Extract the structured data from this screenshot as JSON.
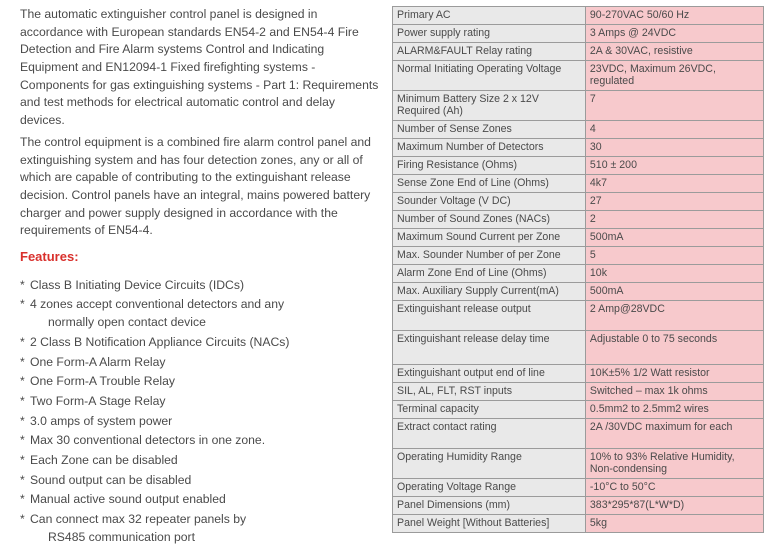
{
  "description": {
    "para1": "The automatic extinguisher control panel is designed in accordance with European standards EN54-2 and  EN54-4 Fire Detection and Fire Alarm systems  Control and Indicating Equipment and EN12094-1  Fixed firefighting systems - Components for gas extinguishing systems - Part 1: Requirements and test methods for electrical automatic control and delay devices.",
    "para2": "The control equipment is a combined fire alarm control panel and extinguishing system and has four detection zones, any or all of which are capable of contributing to the extinguishant release decision. Control panels have an integral, mains powered battery charger and power supply designed in accordance with the requirements of EN54-4."
  },
  "features_header": "Features:",
  "features": [
    {
      "text": " Class B Initiating Device Circuits (IDCs)"
    },
    {
      "text": " 4 zones accept conventional detectors and any",
      "sub": "normally open contact device"
    },
    {
      "text": " 2 Class B Notification Appliance Circuits (NACs)"
    },
    {
      "text": " One Form-A Alarm Relay"
    },
    {
      "text": " One Form-A Trouble Relay"
    },
    {
      "text": " Two Form-A Stage Relay"
    },
    {
      "text": " 3.0 amps of system power"
    },
    {
      "text": " Max 30 conventional detectors in one zone."
    },
    {
      "text": " Each Zone can be disabled"
    },
    {
      "text": " Sound output can be disabled"
    },
    {
      "text": " Manual active sound output enabled"
    },
    {
      "text": " Can connect max 32 repeater panels by",
      "sub": "RS485 communication port"
    }
  ],
  "specs": [
    {
      "k": "Primary AC",
      "v": "90-270VAC 50/60 Hz"
    },
    {
      "k": "Power supply rating",
      "v": "3 Amps @ 24VDC"
    },
    {
      "k": "ALARM&FAULT Relay rating",
      "v": "2A & 30VAC, resistive"
    },
    {
      "k": "Normal Initiating Operating Voltage",
      "v": "23VDC, Maximum 26VDC, regulated",
      "cls": "tall"
    },
    {
      "k": "Minimum Battery Size 2 x 12V Required (Ah)",
      "v": "7",
      "cls": "tall"
    },
    {
      "k": "Number of Sense Zones",
      "v": "4"
    },
    {
      "k": "Maximum Number of Detectors",
      "v": "30"
    },
    {
      "k": "Firing Resistance (Ohms)",
      "v": "510 ± 200"
    },
    {
      "k": "Sense Zone End of Line (Ohms)",
      "v": "4k7"
    },
    {
      "k": "Sounder Voltage (V DC)",
      "v": "27"
    },
    {
      "k": "Number of Sound Zones (NACs)",
      "v": "2"
    },
    {
      "k": "Maximum Sound Current per Zone",
      "v": "500mA"
    },
    {
      "k": "Max. Sounder Number of per Zone",
      "v": "5"
    },
    {
      "k": "Alarm Zone End of Line (Ohms)",
      "v": "10k"
    },
    {
      "k": "Max. Auxiliary Supply Current(mA)",
      "v": "500mA"
    },
    {
      "k": "Extinguishant release output",
      "v": "2 Amp@28VDC",
      "cls": "tall"
    },
    {
      "k": "Extinguishant release delay time",
      "v": "Adjustable 0 to 75 seconds",
      "cls": "taller"
    },
    {
      "k": "Extinguishant output end of line",
      "v": "10K±5% 1/2 Watt resistor"
    },
    {
      "k": "SIL, AL, FLT, RST inputs",
      "v": "Switched –  max 1k ohms"
    },
    {
      "k": "Terminal capacity",
      "v": "0.5mm2 to 2.5mm2 wires"
    },
    {
      "k": "Extract contact rating",
      "v": "2A /30VDC maximum for each",
      "cls": "tall"
    },
    {
      "k": "Operating Humidity\nRange",
      "v": "10% to 93% Relative Humidity, Non-condensing",
      "cls": "tall"
    },
    {
      "k": "Operating Voltage Range",
      "v": "-10°C to 50°C"
    },
    {
      "k": "Panel Dimensions (mm)",
      "v": "383*295*87(L*W*D)"
    },
    {
      "k": "Panel Weight [Without Batteries]",
      "v": "5kg"
    }
  ],
  "colors": {
    "key_bg": "#e9e9e9",
    "val_bg": "#f7c9cc",
    "border": "#9b9b9b",
    "features_hdr": "#d9302c",
    "body_text": "#4a4a4a"
  }
}
